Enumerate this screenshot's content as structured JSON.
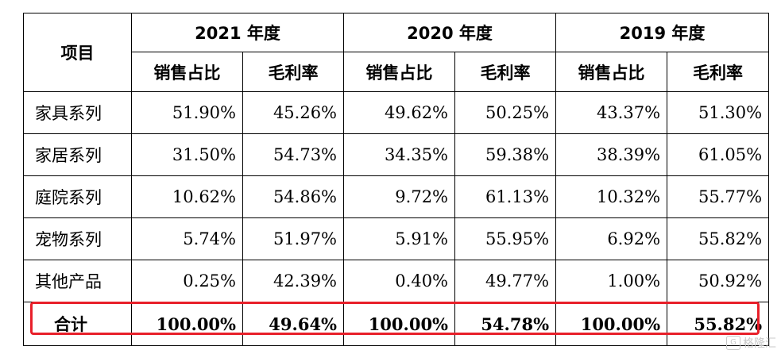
{
  "table": {
    "item_header": "项目",
    "years": [
      "2021 年度",
      "2020 年度",
      "2019 年度"
    ],
    "sub_headers": [
      "销售占比",
      "毛利率"
    ],
    "rows": [
      {
        "label": "家具系列",
        "values": [
          "51.90%",
          "45.26%",
          "49.62%",
          "50.25%",
          "43.37%",
          "51.30%"
        ]
      },
      {
        "label": "家居系列",
        "values": [
          "31.50%",
          "54.73%",
          "34.35%",
          "59.38%",
          "38.39%",
          "61.05%"
        ]
      },
      {
        "label": "庭院系列",
        "values": [
          "10.62%",
          "54.86%",
          "9.72%",
          "61.13%",
          "10.32%",
          "55.77%"
        ]
      },
      {
        "label": "宠物系列",
        "values": [
          "5.74%",
          "51.97%",
          "5.91%",
          "55.95%",
          "6.92%",
          "55.82%"
        ]
      },
      {
        "label": "其他产品",
        "values": [
          "0.25%",
          "42.39%",
          "0.40%",
          "49.77%",
          "1.00%",
          "50.92%"
        ]
      }
    ],
    "total": {
      "label": "合计",
      "values": [
        "100.00%",
        "49.64%",
        "100.00%",
        "54.78%",
        "100.00%",
        "55.82%"
      ]
    }
  },
  "highlight_color": "#e8202a",
  "watermark": {
    "text": "格隆汇",
    "icon": "gelonghui-logo-icon"
  }
}
